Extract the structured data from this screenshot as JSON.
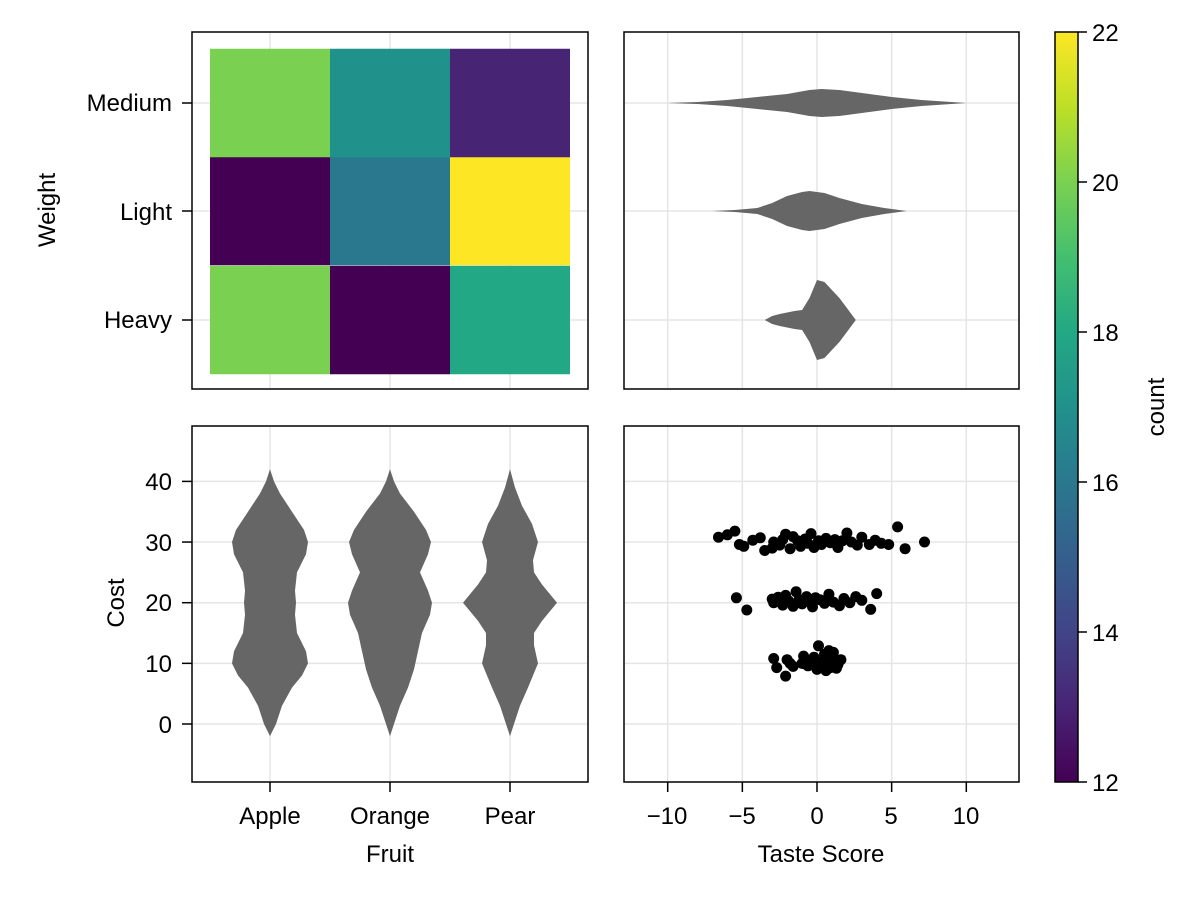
{
  "chart_data": [
    {
      "type": "heatmap",
      "panel": "top-left",
      "xlabel": "",
      "ylabel": "Weight",
      "x_categories": [
        "Apple",
        "Orange",
        "Pear"
      ],
      "y_categories": [
        "Heavy",
        "Light",
        "Medium"
      ],
      "values": [
        [
          20,
          12,
          18
        ],
        [
          12,
          16,
          22
        ],
        [
          20,
          17,
          13
        ]
      ],
      "x_tick_labels_visible": false,
      "grid": true
    },
    {
      "type": "violin",
      "panel": "top-right",
      "orientation": "horizontal",
      "categories": [
        "Heavy",
        "Light",
        "Medium"
      ],
      "xlim": [
        -13.5,
        13.5
      ],
      "series": [
        {
          "category": "Medium",
          "center": 0.2,
          "spread": 3.5,
          "range": [
            -10,
            10
          ]
        },
        {
          "category": "Light",
          "center": -0.5,
          "spread": 2.0,
          "range": [
            -7,
            6
          ]
        },
        {
          "category": "Heavy",
          "center": 0.1,
          "spread": 1.0,
          "range": [
            -3.5,
            2.6
          ]
        }
      ],
      "grid": true
    },
    {
      "type": "violin",
      "panel": "bottom-left",
      "orientation": "vertical",
      "xlabel": "Fruit",
      "ylabel": "Cost",
      "categories": [
        "Apple",
        "Orange",
        "Pear"
      ],
      "y_ticks": [
        0,
        10,
        20,
        30,
        40
      ],
      "ylim": [
        -9.5,
        48.5
      ],
      "y_range": [
        -2,
        42
      ],
      "modes": [
        10,
        20,
        30
      ],
      "grid": true
    },
    {
      "type": "scatter",
      "panel": "bottom-right",
      "xlabel": "Taste Score",
      "x_ticks": [
        "−10",
        "−5",
        "0",
        "5",
        "10"
      ],
      "x_tick_values": [
        -10,
        -5,
        0,
        5,
        10
      ],
      "xlim": [
        -13.5,
        13.5
      ],
      "ylim": [
        -9.5,
        48.5
      ],
      "points": [
        [
          -6.6,
          30.8
        ],
        [
          -6.0,
          31.2
        ],
        [
          -5.5,
          31.8
        ],
        [
          -5.2,
          29.6
        ],
        [
          -4.9,
          29.3
        ],
        [
          -4.3,
          30.3
        ],
        [
          -3.8,
          30.7
        ],
        [
          -3.5,
          28.6
        ],
        [
          -3.0,
          29.0
        ],
        [
          -2.9,
          30.0
        ],
        [
          -2.5,
          29.5
        ],
        [
          -2.3,
          30.4
        ],
        [
          -2.1,
          31.3
        ],
        [
          -1.8,
          28.9
        ],
        [
          -1.6,
          30.9
        ],
        [
          -1.3,
          30.2
        ],
        [
          -1.1,
          29.3
        ],
        [
          -0.8,
          30.5
        ],
        [
          -0.6,
          29.8
        ],
        [
          -0.4,
          31.4
        ],
        [
          -0.2,
          29.1
        ],
        [
          0.1,
          30.2
        ],
        [
          0.3,
          29.6
        ],
        [
          0.6,
          30.6
        ],
        [
          0.9,
          29.9
        ],
        [
          1.2,
          30.4
        ],
        [
          1.4,
          29.1
        ],
        [
          1.7,
          30.2
        ],
        [
          2.0,
          31.5
        ],
        [
          2.3,
          30.0
        ],
        [
          2.7,
          29.5
        ],
        [
          3.0,
          30.8
        ],
        [
          3.5,
          29.6
        ],
        [
          3.9,
          30.3
        ],
        [
          4.3,
          29.8
        ],
        [
          4.8,
          29.6
        ],
        [
          5.4,
          32.5
        ],
        [
          5.9,
          28.9
        ],
        [
          7.2,
          30.0
        ],
        [
          -1.0,
          30.0
        ],
        [
          -5.4,
          20.8
        ],
        [
          -4.7,
          18.8
        ],
        [
          -3.0,
          20.6
        ],
        [
          -2.9,
          20.0
        ],
        [
          -2.6,
          20.9
        ],
        [
          -2.3,
          19.6
        ],
        [
          -2.1,
          21.2
        ],
        [
          -1.9,
          20.3
        ],
        [
          -1.6,
          19.4
        ],
        [
          -1.4,
          21.8
        ],
        [
          -1.2,
          20.5
        ],
        [
          -1.0,
          19.8
        ],
        [
          -0.7,
          21.0
        ],
        [
          -0.5,
          20.2
        ],
        [
          -0.3,
          19.3
        ],
        [
          -0.1,
          20.8
        ],
        [
          0.2,
          20.5
        ],
        [
          0.5,
          19.9
        ],
        [
          0.8,
          21.4
        ],
        [
          1.1,
          20.1
        ],
        [
          1.5,
          19.5
        ],
        [
          1.8,
          20.7
        ],
        [
          2.2,
          20.0
        ],
        [
          2.6,
          21.0
        ],
        [
          3.0,
          20.4
        ],
        [
          3.6,
          18.9
        ],
        [
          4.0,
          21.5
        ],
        [
          -2.9,
          10.8
        ],
        [
          -2.7,
          9.3
        ],
        [
          -2.0,
          10.6
        ],
        [
          -1.8,
          10.0
        ],
        [
          -1.6,
          9.5
        ],
        [
          -1.0,
          10.0
        ],
        [
          -0.9,
          11.2
        ],
        [
          -0.6,
          9.6
        ],
        [
          -0.4,
          10.5
        ],
        [
          -0.2,
          11.0
        ],
        [
          0.0,
          9.0
        ],
        [
          0.1,
          12.9
        ],
        [
          0.3,
          10.2
        ],
        [
          0.4,
          9.7
        ],
        [
          0.5,
          11.5
        ],
        [
          0.6,
          8.8
        ],
        [
          0.7,
          10.4
        ],
        [
          0.8,
          12.1
        ],
        [
          0.9,
          9.3
        ],
        [
          1.0,
          10.9
        ],
        [
          1.2,
          10.1
        ],
        [
          1.4,
          9.8
        ],
        [
          1.6,
          10.6
        ],
        [
          -2.1,
          7.9
        ],
        [
          1.1,
          11.8
        ],
        [
          -0.3,
          10.2
        ],
        [
          0.2,
          9.4
        ],
        [
          0.6,
          10.8
        ],
        [
          -0.8,
          9.9
        ],
        [
          1.3,
          9.2
        ]
      ],
      "grid": true
    },
    {
      "type": "colorbar",
      "label": "count",
      "range": [
        12,
        22
      ],
      "ticks": [
        12,
        14,
        16,
        18,
        20,
        22
      ],
      "colormap": "viridis"
    }
  ],
  "text": {
    "heatmap_ylabel": "Weight",
    "violin_ylabel": "Cost",
    "violin_xlabel": "Fruit",
    "scatter_xlabel": "Taste Score",
    "colorbar_label": "count",
    "weight_ticks": [
      "Medium",
      "Light",
      "Heavy"
    ],
    "fruit_ticks": [
      "Apple",
      "Orange",
      "Pear"
    ],
    "cost_ticks": [
      "40",
      "30",
      "20",
      "10",
      "0"
    ],
    "taste_ticks": [
      "−10",
      "−5",
      "0",
      "5",
      "10"
    ],
    "colorbar_ticks": [
      "22",
      "20",
      "18",
      "16",
      "14",
      "12"
    ]
  },
  "colors": {
    "violin_fill": "#666666",
    "scatter_point": "#000000",
    "grid": "#e5e5e5",
    "frame": "#000000"
  }
}
